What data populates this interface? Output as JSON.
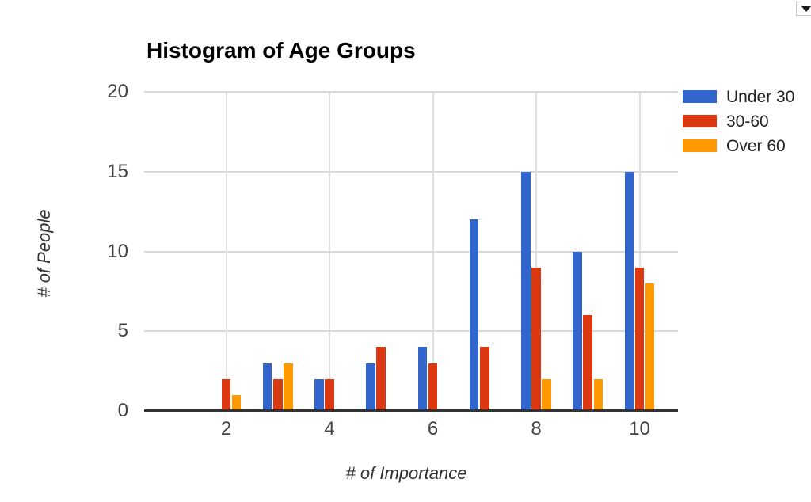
{
  "window": {
    "options_dropdown": "chart-options-dropdown"
  },
  "chart_data": {
    "type": "bar",
    "title": "Histogram of Age Groups",
    "xlabel": "# of Importance",
    "ylabel": "# of People",
    "x": [
      2,
      3,
      4,
      5,
      6,
      7,
      8,
      9,
      10
    ],
    "x_tick_labels": [
      "2",
      "4",
      "6",
      "8",
      "10"
    ],
    "x_tick_values": [
      2,
      4,
      6,
      8,
      10
    ],
    "y_tick_labels": [
      "0",
      "5",
      "10",
      "15",
      "20"
    ],
    "y_tick_values": [
      0,
      5,
      10,
      15,
      20
    ],
    "ylim": [
      0,
      20
    ],
    "grid": true,
    "legend_position": "top-right",
    "series": [
      {
        "name": "Under 30",
        "color": "#3366CC",
        "values": [
          null,
          3,
          2,
          3,
          4,
          12,
          15,
          10,
          15
        ]
      },
      {
        "name": "30-60",
        "color": "#DC3912",
        "values": [
          2,
          2,
          2,
          4,
          3,
          4,
          9,
          6,
          9
        ]
      },
      {
        "name": "Over 60",
        "color": "#FF9900",
        "values": [
          1,
          3,
          null,
          null,
          null,
          null,
          2,
          2,
          8
        ]
      }
    ]
  }
}
